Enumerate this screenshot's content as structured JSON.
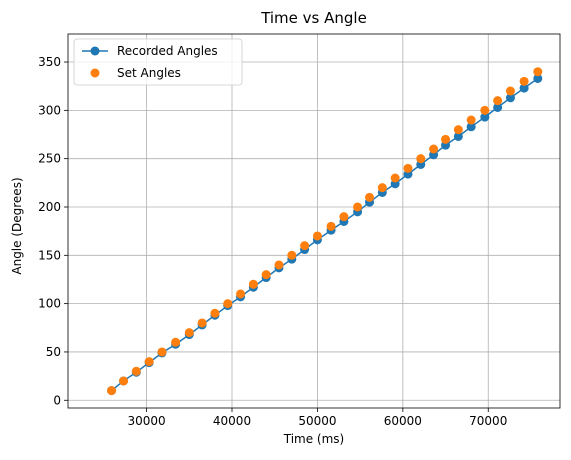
{
  "chart_data": {
    "type": "line",
    "title": "Time vs Angle",
    "xlabel": "Time (ms)",
    "ylabel": "Angle (Degrees)",
    "xlim": [
      20800,
      78400
    ],
    "ylim": [
      -8,
      379
    ],
    "xticks": [
      30000,
      40000,
      50000,
      60000,
      70000
    ],
    "yticks": [
      0,
      50,
      100,
      150,
      200,
      250,
      300,
      350
    ],
    "grid": true,
    "legend_position": "upper-left",
    "series": [
      {
        "name": "Recorded Angles",
        "style": "line-with-markers",
        "color": "#1f77b4",
        "x": [
          25900,
          27300,
          28800,
          30300,
          31800,
          33400,
          35000,
          36500,
          38000,
          39500,
          41000,
          42500,
          44000,
          45500,
          47000,
          48500,
          50000,
          51600,
          53100,
          54700,
          56100,
          57600,
          59100,
          60600,
          62100,
          63600,
          65000,
          66500,
          68000,
          69600,
          71100,
          72600,
          74200,
          75800
        ],
        "y": [
          10,
          20,
          29,
          39,
          49,
          58,
          68,
          78,
          88,
          98,
          107,
          117,
          127,
          137,
          146,
          156,
          166,
          176,
          185,
          195,
          205,
          215,
          224,
          234,
          244,
          254,
          264,
          273,
          283,
          293,
          303,
          313,
          323,
          333
        ]
      },
      {
        "name": "Set Angles",
        "style": "markers",
        "color": "#ff7f0e",
        "x": [
          25900,
          27300,
          28800,
          30300,
          31800,
          33400,
          35000,
          36500,
          38000,
          39500,
          41000,
          42500,
          44000,
          45500,
          47000,
          48500,
          50000,
          51600,
          53100,
          54700,
          56100,
          57600,
          59100,
          60600,
          62100,
          63600,
          65000,
          66500,
          68000,
          69600,
          71100,
          72600,
          74200,
          75800
        ],
        "y": [
          10,
          20,
          30,
          40,
          50,
          60,
          70,
          80,
          90,
          100,
          110,
          120,
          130,
          140,
          150,
          160,
          170,
          180,
          190,
          200,
          210,
          220,
          230,
          240,
          250,
          260,
          270,
          280,
          290,
          300,
          310,
          320,
          330,
          340
        ]
      }
    ]
  }
}
